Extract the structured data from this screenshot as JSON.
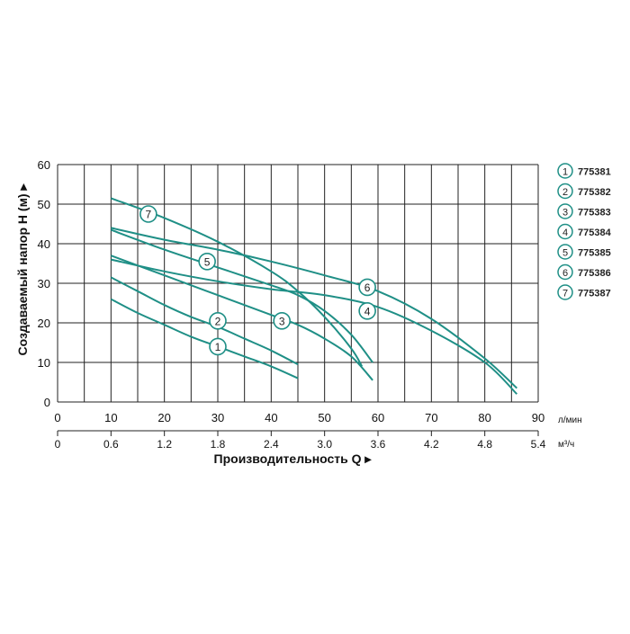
{
  "chart_data": {
    "type": "line",
    "ylabel": "Создаваемый напор H (м) ▸",
    "xlabel": "Производительность Q ▸",
    "x_unit": "л/мин",
    "x2_unit": "м³/ч",
    "xlim": [
      0,
      90
    ],
    "ylim": [
      0,
      60
    ],
    "x_ticks": [
      "0",
      "10",
      "20",
      "30",
      "40",
      "50",
      "60",
      "70",
      "80",
      "90"
    ],
    "x2_ticks": [
      "0",
      "0.6",
      "1.2",
      "1.8",
      "2.4",
      "3.0",
      "3.6",
      "4.2",
      "4.8",
      "5.4"
    ],
    "y_ticks": [
      "0",
      "10",
      "20",
      "30",
      "40",
      "50",
      "60"
    ],
    "grid": true,
    "legend_position": "right",
    "series_color": "#1f8f86",
    "series": [
      {
        "name": "775381",
        "marker": "1",
        "label_at": [
          30,
          14
        ],
        "points": [
          [
            10,
            26
          ],
          [
            15,
            22.5
          ],
          [
            20,
            19.5
          ],
          [
            25,
            16.5
          ],
          [
            30,
            14
          ],
          [
            35,
            11.5
          ],
          [
            40,
            9
          ],
          [
            45,
            6
          ]
        ]
      },
      {
        "name": "775382",
        "marker": "2",
        "label_at": [
          30,
          20.5
        ],
        "points": [
          [
            10,
            31.5
          ],
          [
            15,
            28
          ],
          [
            20,
            24.5
          ],
          [
            25,
            21.5
          ],
          [
            30,
            19
          ],
          [
            35,
            16
          ],
          [
            40,
            13
          ],
          [
            45,
            9.5
          ]
        ]
      },
      {
        "name": "775383",
        "marker": "3",
        "label_at": [
          42,
          20.5
        ],
        "points": [
          [
            10,
            37
          ],
          [
            20,
            32
          ],
          [
            30,
            27
          ],
          [
            40,
            22
          ],
          [
            45,
            19.5
          ],
          [
            50,
            16
          ],
          [
            55,
            11.5
          ],
          [
            59,
            5.5
          ]
        ]
      },
      {
        "name": "775384",
        "marker": "4",
        "label_at": [
          58,
          23
        ],
        "points": [
          [
            10,
            36
          ],
          [
            20,
            33
          ],
          [
            30,
            30.5
          ],
          [
            40,
            28.5
          ],
          [
            50,
            27
          ],
          [
            60,
            24
          ],
          [
            70,
            18
          ],
          [
            80,
            10
          ],
          [
            86,
            2
          ]
        ]
      },
      {
        "name": "775385",
        "marker": "5",
        "label_at": [
          28,
          35.5
        ],
        "points": [
          [
            10,
            43.5
          ],
          [
            20,
            38.5
          ],
          [
            30,
            34
          ],
          [
            40,
            29.5
          ],
          [
            45,
            27
          ],
          [
            50,
            23
          ],
          [
            55,
            17
          ],
          [
            59,
            10
          ]
        ]
      },
      {
        "name": "775386",
        "marker": "6",
        "label_at": [
          58,
          29
        ],
        "points": [
          [
            10,
            44
          ],
          [
            20,
            41
          ],
          [
            30,
            38.5
          ],
          [
            40,
            35.5
          ],
          [
            50,
            32
          ],
          [
            60,
            28
          ],
          [
            70,
            21
          ],
          [
            80,
            11
          ],
          [
            86,
            3.5
          ]
        ]
      },
      {
        "name": "775387",
        "marker": "7",
        "label_at": [
          17,
          47.5
        ],
        "points": [
          [
            10,
            51.5
          ],
          [
            20,
            46.5
          ],
          [
            30,
            40.5
          ],
          [
            40,
            33
          ],
          [
            45,
            28
          ],
          [
            50,
            21.5
          ],
          [
            55,
            13.5
          ],
          [
            57,
            9
          ]
        ]
      }
    ]
  }
}
